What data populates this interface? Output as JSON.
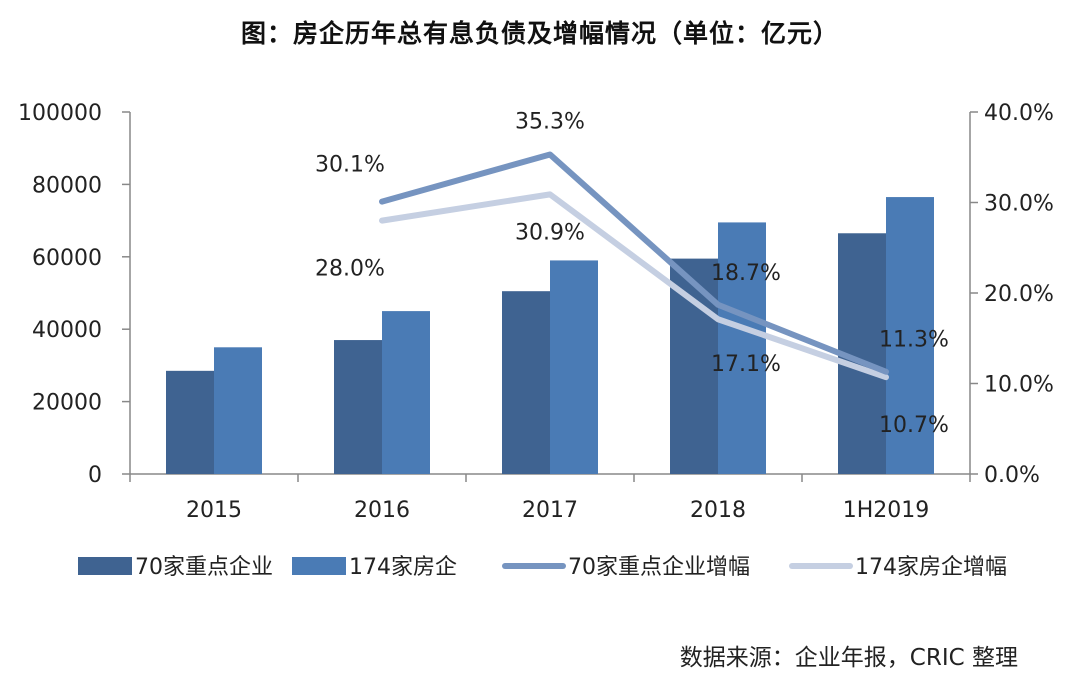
{
  "title": "图：房企历年总有息负债及增幅情况（单位：亿元）",
  "source": "数据来源：企业年报，CRIC 整理",
  "colors": {
    "bar_series_1": "#3f6391",
    "bar_series_2": "#4a7bb5",
    "line_series_1": "#7694c0",
    "line_series_2": "#c5cfe2",
    "axis": "#888888"
  },
  "chart_data": {
    "type": "bar+line",
    "title": "图：房企历年总有息负债及增幅情况（单位：亿元）",
    "categories": [
      "2015",
      "2016",
      "2017",
      "2018",
      "1H2019"
    ],
    "y_left": {
      "range": [
        0,
        100000
      ],
      "ticks": [
        0,
        20000,
        40000,
        60000,
        80000,
        100000
      ],
      "tick_labels": [
        "0",
        "20000",
        "40000",
        "60000",
        "80000",
        "100000"
      ]
    },
    "y_right": {
      "range": [
        0,
        40
      ],
      "ticks": [
        0,
        10,
        20,
        30,
        40
      ],
      "tick_labels": [
        "0.0%",
        "10.0%",
        "20.0%",
        "30.0%",
        "40.0%"
      ]
    },
    "bar_series": [
      {
        "name": "70家重点企业",
        "values": [
          28500,
          37000,
          50500,
          59500,
          66500
        ]
      },
      {
        "name": "174家房企",
        "values": [
          35000,
          45000,
          59000,
          69500,
          76500
        ]
      }
    ],
    "line_series": [
      {
        "name": "70家重点企业增幅",
        "values": [
          null,
          30.1,
          35.3,
          18.7,
          11.3
        ],
        "labels": [
          null,
          "30.1%",
          "35.3%",
          "18.7%",
          "11.3%"
        ]
      },
      {
        "name": "174家房企增幅",
        "values": [
          null,
          28.0,
          30.9,
          17.1,
          10.7
        ],
        "labels": [
          null,
          "28.0%",
          "30.9%",
          "17.1%",
          "10.7%"
        ]
      }
    ],
    "legend_position": "bottom"
  }
}
